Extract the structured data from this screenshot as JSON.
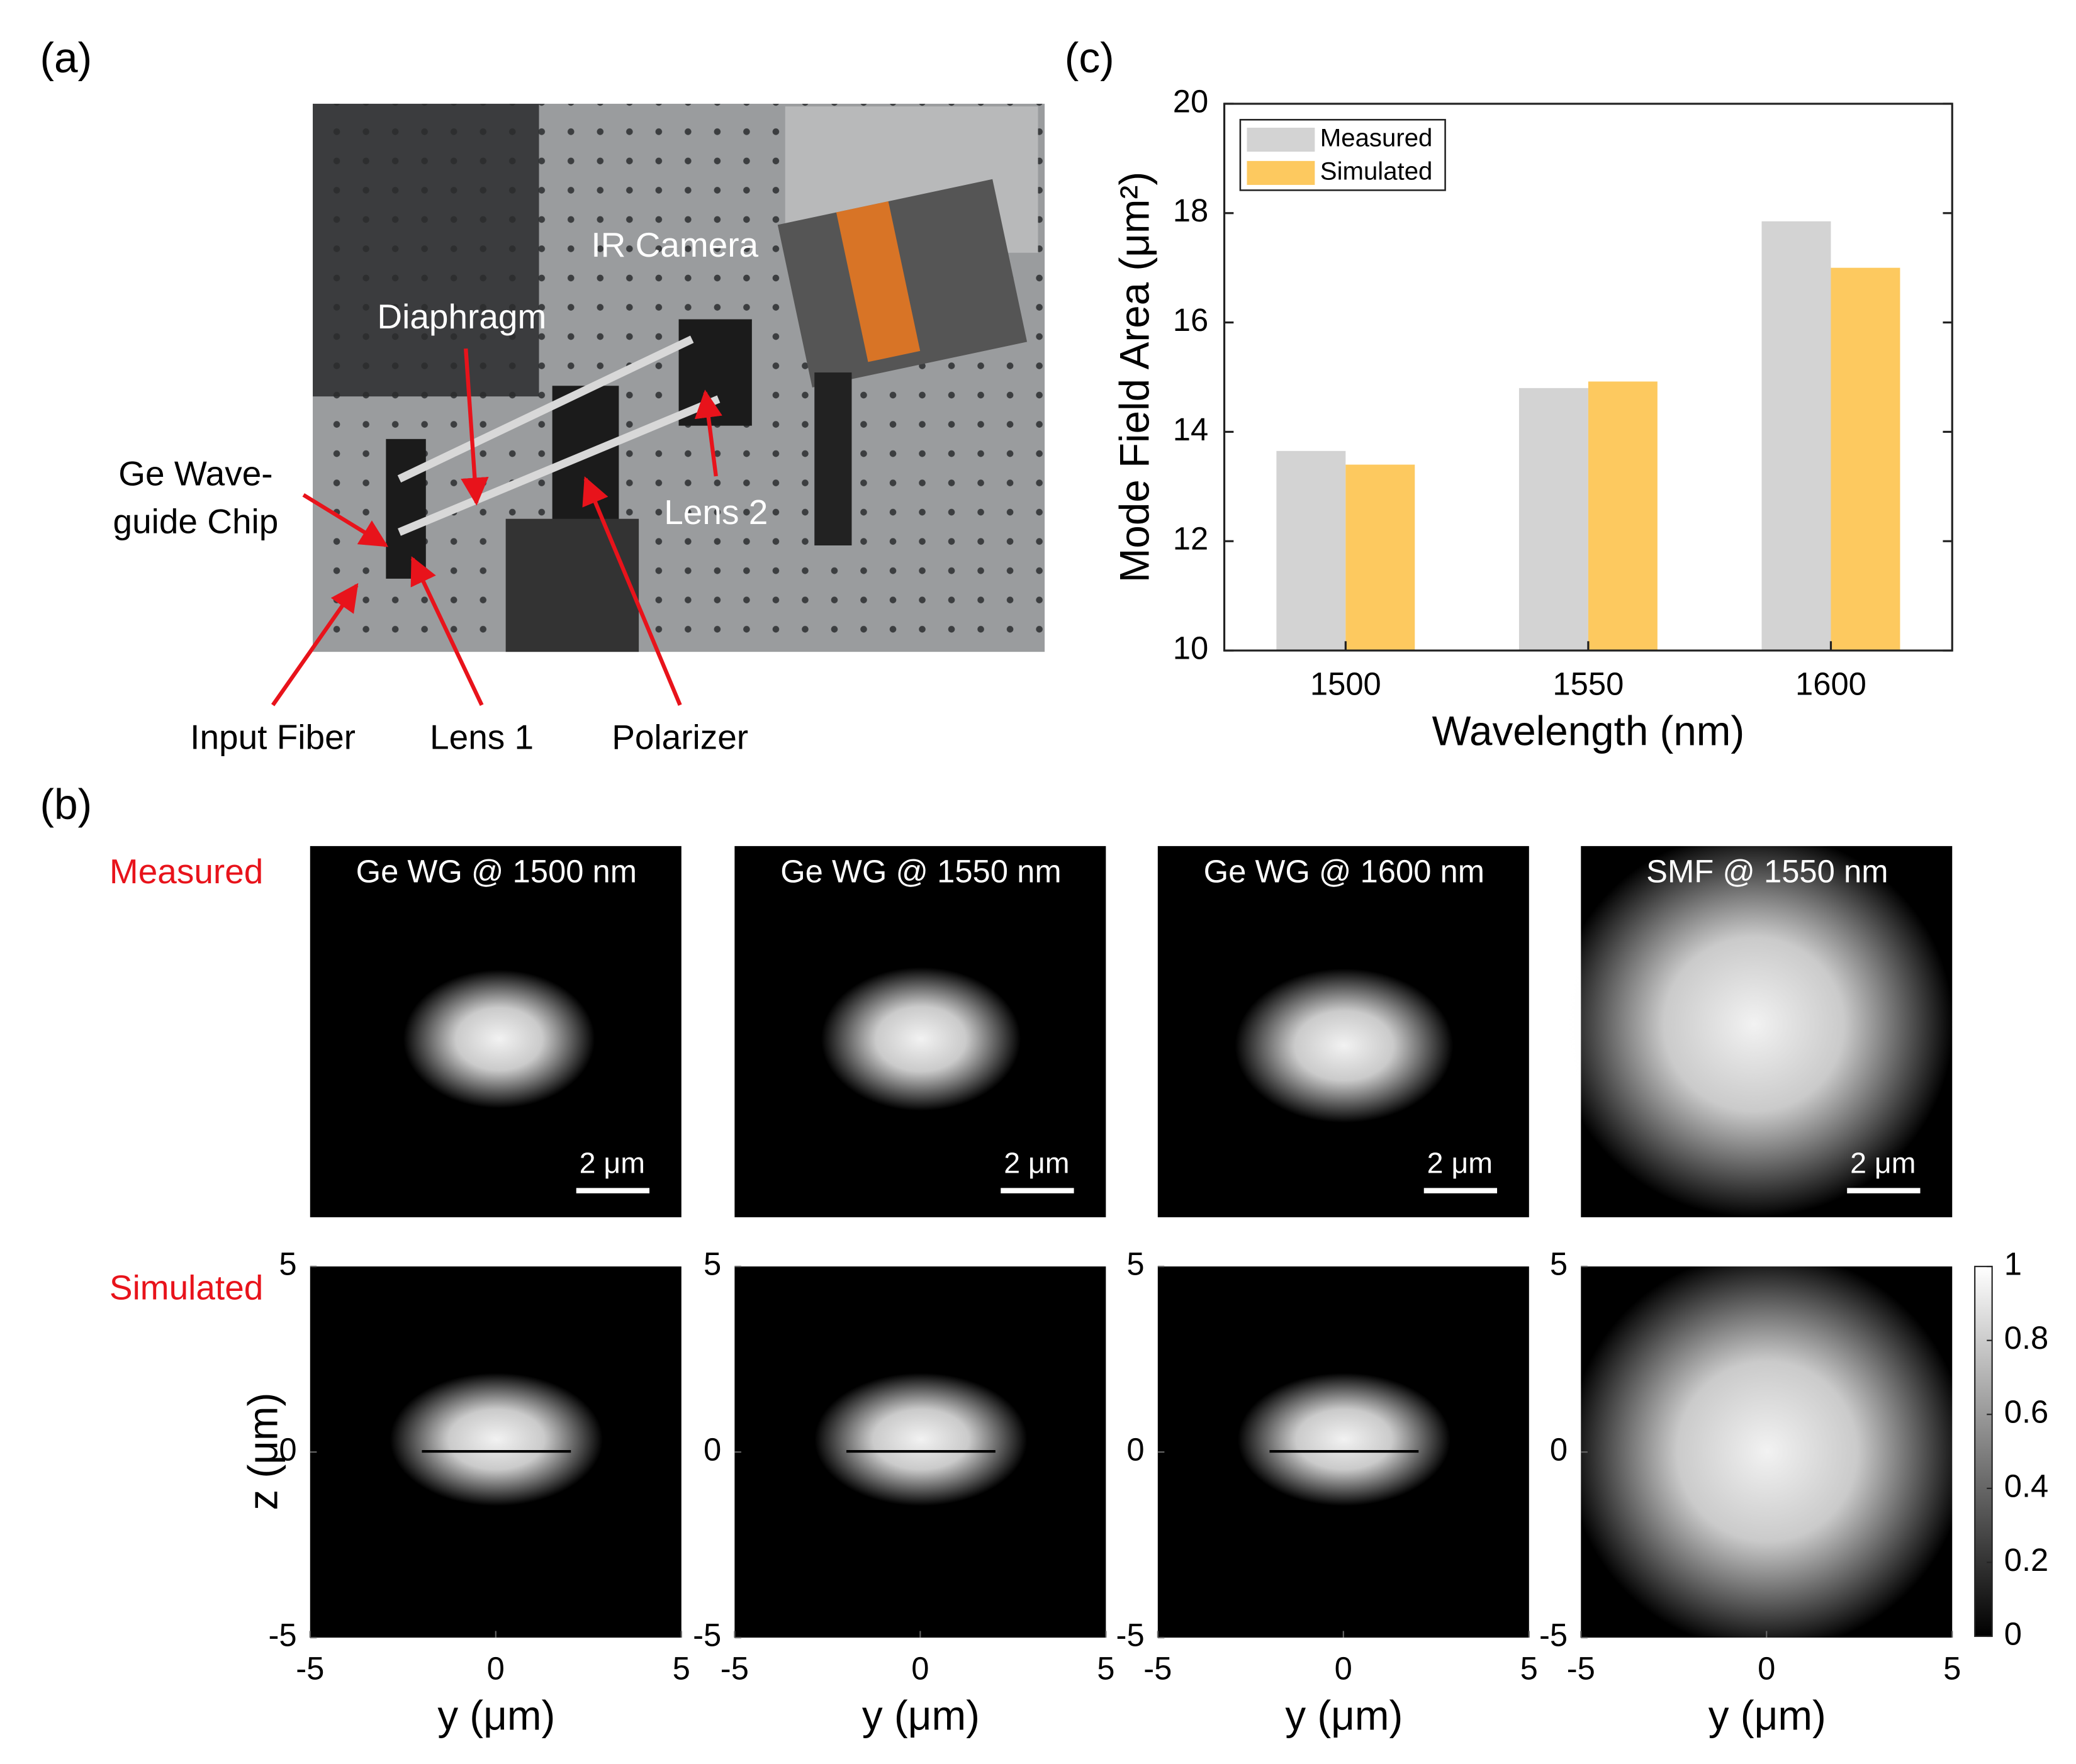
{
  "panels": {
    "a": "(a)",
    "b": "(b)",
    "c": "(c)"
  },
  "photo_labels": {
    "camera": "IR Camera",
    "diaphragm": "Diaphragm",
    "lens2": "Lens 2",
    "chip_line1": "Ge Wave-",
    "chip_line2": "guide Chip",
    "fiber": "Input Fiber",
    "lens1": "Lens 1",
    "polarizer": "Polarizer"
  },
  "chart_data": {
    "type": "bar",
    "categories": [
      "1500",
      "1550",
      "1600"
    ],
    "series": [
      {
        "name": "Measured",
        "color": "#d3d3d3",
        "values": [
          13.65,
          14.8,
          17.85
        ]
      },
      {
        "name": "Simulated",
        "color": "#fdc95f",
        "values": [
          13.4,
          14.92,
          17.0
        ]
      }
    ],
    "ylim": [
      10,
      20
    ],
    "yticks": [
      10,
      12,
      14,
      16,
      18,
      20
    ],
    "xlabel": "Wavelength (nm)",
    "ylabel": "Mode Field Area (μm²)",
    "legend": "upper left"
  },
  "mode_images": {
    "rows": [
      "Measured",
      "Simulated"
    ],
    "columns": [
      {
        "title": "Ge WG @ 1500 nm"
      },
      {
        "title": "Ge WG @ 1550 nm"
      },
      {
        "title": "Ge WG @ 1600 nm"
      },
      {
        "title": "SMF @ 1550 nm"
      }
    ],
    "scale_bar": "2 μm",
    "xlim": [
      -5,
      5
    ],
    "ylim": [
      -5,
      5
    ],
    "xticks": [
      -5,
      0,
      5
    ],
    "yticks": [
      -5,
      0,
      5
    ],
    "xlabel": "y (μm)",
    "ylabel": "z (μm)",
    "colorbar": {
      "lim": [
        0,
        1
      ],
      "ticks": [
        0,
        0.2,
        0.4,
        0.6,
        0.8,
        1
      ]
    }
  }
}
